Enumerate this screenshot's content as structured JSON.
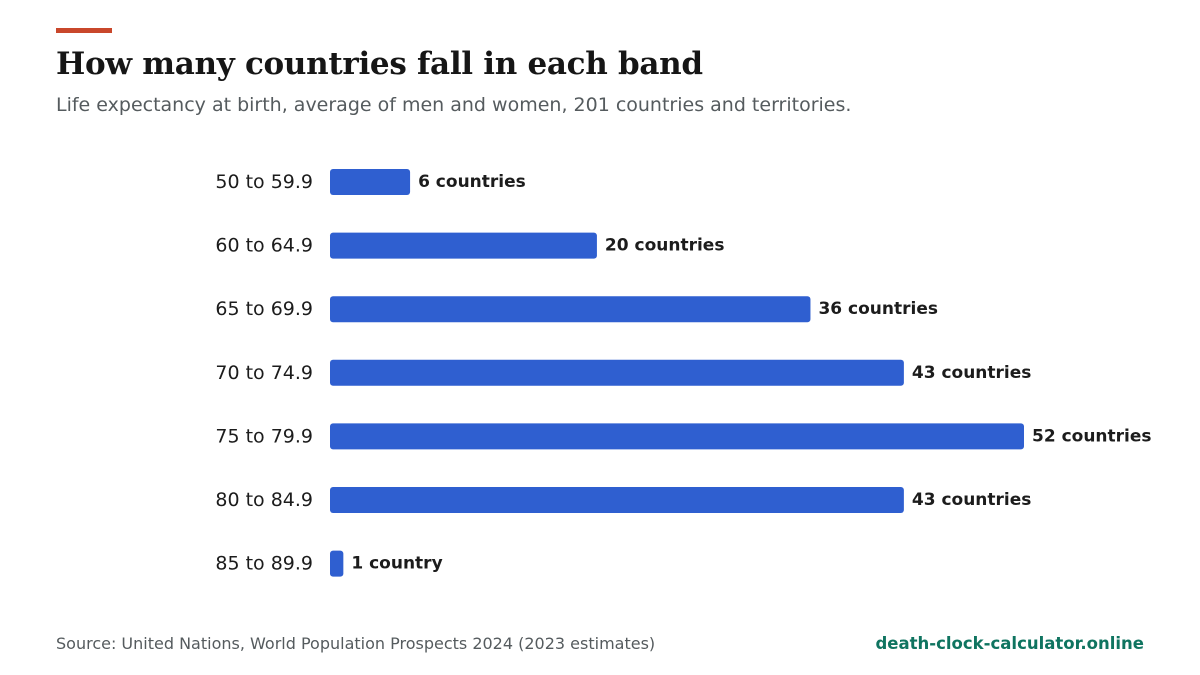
{
  "colors": {
    "accent": "#c9472b",
    "bar": "#2f5fd0",
    "brand": "#0f7460"
  },
  "chart_data": {
    "type": "bar",
    "orientation": "horizontal",
    "title": "How many countries fall in each band",
    "subtitle": "Life expectancy at birth, average of men and women, 201 countries and territories.",
    "categories": [
      "50 to 59.9",
      "60 to 64.9",
      "65 to 69.9",
      "70 to 74.9",
      "75 to 79.9",
      "80 to 84.9",
      "85 to 89.9"
    ],
    "values": [
      6,
      20,
      36,
      43,
      52,
      43,
      1
    ],
    "value_labels": [
      "6 countries",
      "20 countries",
      "36 countries",
      "43 countries",
      "52 countries",
      "43 countries",
      "1 country"
    ],
    "xlim": [
      0,
      52
    ],
    "grid": false,
    "legend": "none"
  },
  "footer": {
    "source": "Source: United Nations, World Population Prospects 2024 (2023 estimates)",
    "brand": "death-clock-calculator.online"
  }
}
